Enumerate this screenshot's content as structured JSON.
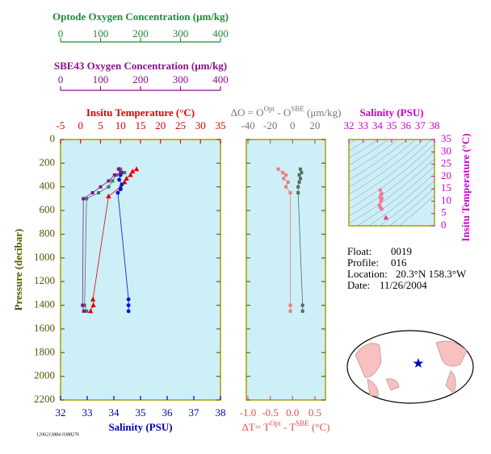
{
  "chart_data": [
    {
      "type": "line",
      "ylabel": "Pressure (decibar)",
      "ylim": [
        0,
        2200
      ],
      "yticks": [
        0,
        200,
        400,
        600,
        800,
        1000,
        1200,
        1400,
        1600,
        1800,
        2000,
        2200
      ],
      "y_inverted": true,
      "axes": {
        "optode": {
          "label": "Optode Oxygen Concentration (μm/kg)",
          "lim": [
            0,
            400
          ],
          "ticks": [
            0,
            100,
            200,
            300,
            400
          ],
          "color": "#1f8a3a"
        },
        "sbe43": {
          "label": "SBE43 Oxygen Concentration (μm/kg)",
          "lim": [
            0,
            400
          ],
          "ticks": [
            0,
            100,
            200,
            300,
            400
          ],
          "color": "#8b108b"
        },
        "temperature": {
          "label": "Insitu Temperature (°C)",
          "lim": [
            -5,
            35
          ],
          "ticks": [
            -5,
            0,
            5,
            10,
            15,
            20,
            25,
            30,
            35
          ],
          "color": "#dd0000"
        },
        "salinity": {
          "label": "Salinity (PSU)",
          "lim": [
            32,
            38
          ],
          "ticks": [
            32,
            33,
            34,
            35,
            36,
            37,
            38
          ],
          "color": "#0000aa"
        }
      },
      "series": [
        {
          "axis": "temperature",
          "color": "#e00000",
          "marker": "triangle",
          "pressure": [
            250,
            270,
            300,
            330,
            360,
            400,
            480,
            1350,
            1400,
            1450
          ],
          "values": [
            14,
            13,
            12.5,
            11.5,
            11,
            10,
            7,
            3.1,
            3.2,
            2.5
          ]
        },
        {
          "axis": "salinity",
          "color": "#0010dd",
          "marker": "circle",
          "pressure": [
            250,
            280,
            300,
            340,
            380,
            420,
            450,
            1350,
            1400,
            1450
          ],
          "values": [
            34.2,
            34.3,
            34.25,
            34.2,
            34.3,
            34.25,
            34.15,
            34.55,
            34.55,
            34.55
          ]
        },
        {
          "axis": "optode",
          "color": "#4f6f5f",
          "marker": "square",
          "pressure": [
            250,
            280,
            300,
            350,
            400,
            450,
            500,
            1400,
            1450
          ],
          "values": [
            150,
            160,
            140,
            130,
            120,
            95,
            65,
            60,
            65
          ]
        },
        {
          "axis": "sbe43",
          "color": "#8b108b",
          "marker": "square",
          "pressure": [
            250,
            280,
            300,
            350,
            400,
            450,
            500,
            1400,
            1450
          ],
          "values": [
            145,
            150,
            135,
            120,
            100,
            80,
            57,
            55,
            58
          ]
        }
      ]
    },
    {
      "type": "line",
      "ylim": [
        0,
        2200
      ],
      "yticks": [
        0,
        200,
        400,
        600,
        800,
        1000,
        1200,
        1400,
        1600,
        1800,
        2000,
        2200
      ],
      "y_inverted": true,
      "axes": {
        "oxygen_difference": {
          "label": [
            "ΔO = O",
            "Opt",
            " - O",
            "SBE",
            " (μm/kg)"
          ],
          "lim": [
            -41.5,
            29.5
          ],
          "ticks": [
            -40,
            -20,
            0,
            20
          ],
          "color": "#777777"
        },
        "temperature_difference": {
          "label": [
            "ΔT= T",
            "Opt",
            " - T",
            "SBE",
            " (°C)"
          ],
          "lim": [
            -1.035,
            0.735
          ],
          "ticks": [
            {
              "value": -1,
              "label": "-1.0"
            },
            -0.5,
            {
              "value": 0,
              "label": "0.0"
            },
            0.5
          ],
          "color": "#e05050"
        }
      },
      "series": [
        {
          "axis": "oxygen_difference",
          "color": "#556b5f",
          "marker": "square",
          "pressure": [
            250,
            280,
            300,
            330,
            360,
            400,
            450,
            1400,
            1450
          ],
          "values": [
            7,
            8,
            6,
            7,
            6,
            5,
            5,
            9,
            9
          ]
        },
        {
          "axis": "temperature_difference",
          "color": "#f07878",
          "marker": "square",
          "pressure": [
            250,
            280,
            300,
            330,
            360,
            400,
            450,
            1400,
            1450
          ],
          "values": [
            -0.32,
            -0.22,
            -0.15,
            -0.2,
            -0.1,
            -0.15,
            -0.05,
            -0.05,
            -0.05
          ]
        }
      ]
    },
    {
      "type": "scatter",
      "xlabel": "Salinity (PSU)",
      "ylabel": "Insitu Temperature (°C)",
      "xlim": [
        32,
        38
      ],
      "xticks": [
        32,
        33,
        34,
        35,
        36,
        37,
        38
      ],
      "ylim": [
        0,
        35
      ],
      "yticks": [
        0,
        5,
        10,
        15,
        20,
        25,
        30,
        35
      ],
      "color": "#cc00cc",
      "series": [
        {
          "color": "#f07c9a",
          "marker": "circle",
          "x": [
            34.2,
            34.3,
            34.25,
            34.2,
            34.3,
            34.25,
            34.15,
            34.2,
            34.3
          ],
          "values": [
            14.5,
            13,
            12.5,
            11.5,
            11,
            10,
            8.5,
            7.5,
            6.8
          ]
        },
        {
          "color": "#e0408a",
          "marker": "triangle",
          "x": [
            34.6
          ],
          "values": [
            3.3
          ]
        }
      ]
    }
  ],
  "info": {
    "float": {
      "label": "Float:",
      "value": "0019"
    },
    "profile": {
      "label": "Profile:",
      "value": "016"
    },
    "location": {
      "label": "Location:",
      "value": "20.3°N  158.3°W"
    },
    "date": {
      "label": "Date:",
      "value": "11/26/2004"
    }
  },
  "footer": "1206213884:0388276"
}
